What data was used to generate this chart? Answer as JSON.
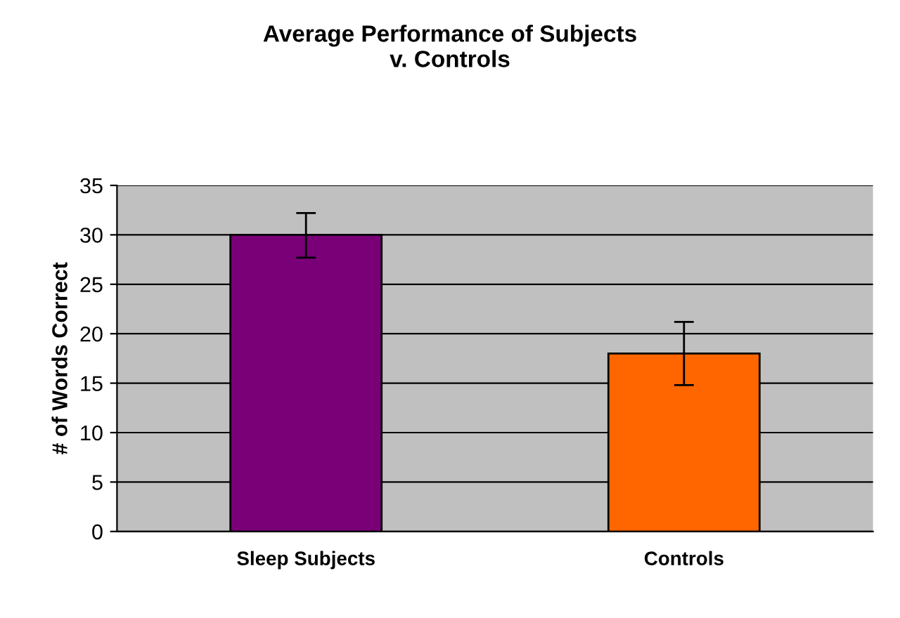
{
  "chart_data": {
    "type": "bar",
    "title": "Average Performance of Subjects\nv. Controls",
    "ylabel": "# of Words Correct",
    "categories": [
      "Sleep Subjects",
      "Controls"
    ],
    "values": [
      30,
      18
    ],
    "colors": [
      "#7a0078",
      "#ff6600"
    ],
    "errors": [
      [
        27.7,
        32.2
      ],
      [
        14.8,
        21.2
      ]
    ],
    "ylim": [
      0,
      35
    ],
    "yticks": [
      0,
      5,
      10,
      15,
      20,
      25,
      30,
      35
    ],
    "grid": "y"
  }
}
